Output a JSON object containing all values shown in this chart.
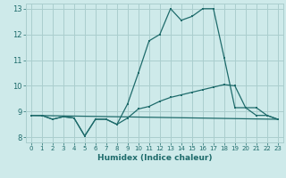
{
  "xlabel": "Humidex (Indice chaleur)",
  "bg_color": "#ceeaea",
  "grid_color": "#aacece",
  "line_color": "#1e6b6b",
  "xlim": [
    -0.5,
    23.5
  ],
  "ylim": [
    7.8,
    13.2
  ],
  "xticks": [
    0,
    1,
    2,
    3,
    4,
    5,
    6,
    7,
    8,
    9,
    10,
    11,
    12,
    13,
    14,
    15,
    16,
    17,
    18,
    19,
    20,
    21,
    22,
    23
  ],
  "yticks": [
    8,
    9,
    10,
    11,
    12,
    13
  ],
  "line1_x": [
    0,
    1,
    2,
    3,
    4,
    5,
    6,
    7,
    8,
    9,
    10,
    11,
    12,
    13,
    14,
    15,
    16,
    17,
    18,
    19,
    20,
    21,
    22,
    23
  ],
  "line1_y": [
    8.85,
    8.85,
    8.7,
    8.8,
    8.75,
    8.05,
    8.7,
    8.7,
    8.5,
    9.3,
    10.5,
    11.75,
    12.0,
    13.0,
    12.55,
    12.7,
    13.0,
    13.0,
    11.1,
    9.15,
    9.15,
    8.85,
    8.85,
    8.7
  ],
  "line2_x": [
    0,
    1,
    2,
    3,
    4,
    5,
    6,
    7,
    8,
    9,
    10,
    11,
    12,
    13,
    14,
    15,
    16,
    17,
    18,
    19,
    20,
    21,
    22,
    23
  ],
  "line2_y": [
    8.85,
    8.85,
    8.7,
    8.8,
    8.75,
    8.05,
    8.7,
    8.7,
    8.5,
    8.75,
    9.1,
    9.2,
    9.4,
    9.55,
    9.65,
    9.75,
    9.85,
    9.95,
    10.05,
    10.0,
    9.15,
    9.15,
    8.85,
    8.7
  ],
  "line3_x": [
    0,
    23
  ],
  "line3_y": [
    8.85,
    8.7
  ]
}
